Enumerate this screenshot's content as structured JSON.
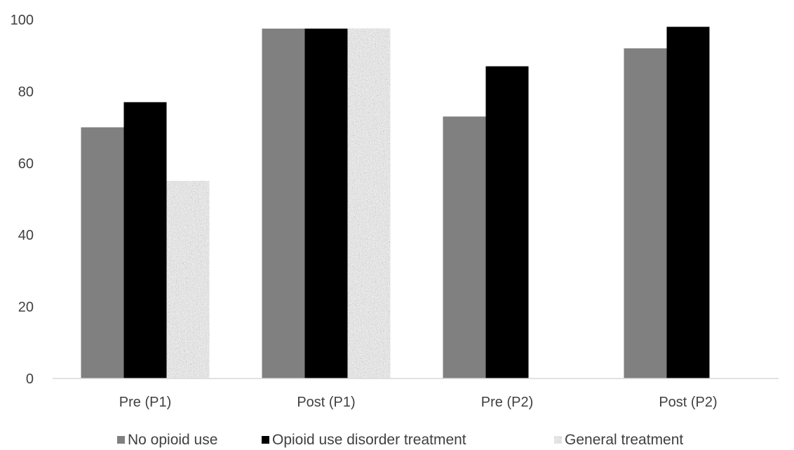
{
  "chart_data": {
    "type": "bar",
    "title": "",
    "xlabel": "",
    "ylabel": "",
    "categories": [
      "Pre (P1)",
      "Post (P1)",
      "Pre (P2)",
      "Post (P2)"
    ],
    "series": [
      {
        "name": "No opioid use",
        "values": [
          70,
          97.5,
          73,
          92
        ],
        "color": "#808080",
        "pattern": "solid"
      },
      {
        "name": "Opioid use disorder treatment",
        "values": [
          77,
          97.5,
          87,
          98
        ],
        "color": "#000000",
        "pattern": "solid"
      },
      {
        "name": "General treatment",
        "values": [
          55,
          97.5,
          null,
          null
        ],
        "color": "#a6a6a6",
        "pattern": "speckled"
      }
    ],
    "ylim": [
      0,
      100
    ],
    "yticks": [
      0,
      20,
      40,
      60,
      80,
      100
    ],
    "grid": false,
    "legend_position": "bottom"
  }
}
